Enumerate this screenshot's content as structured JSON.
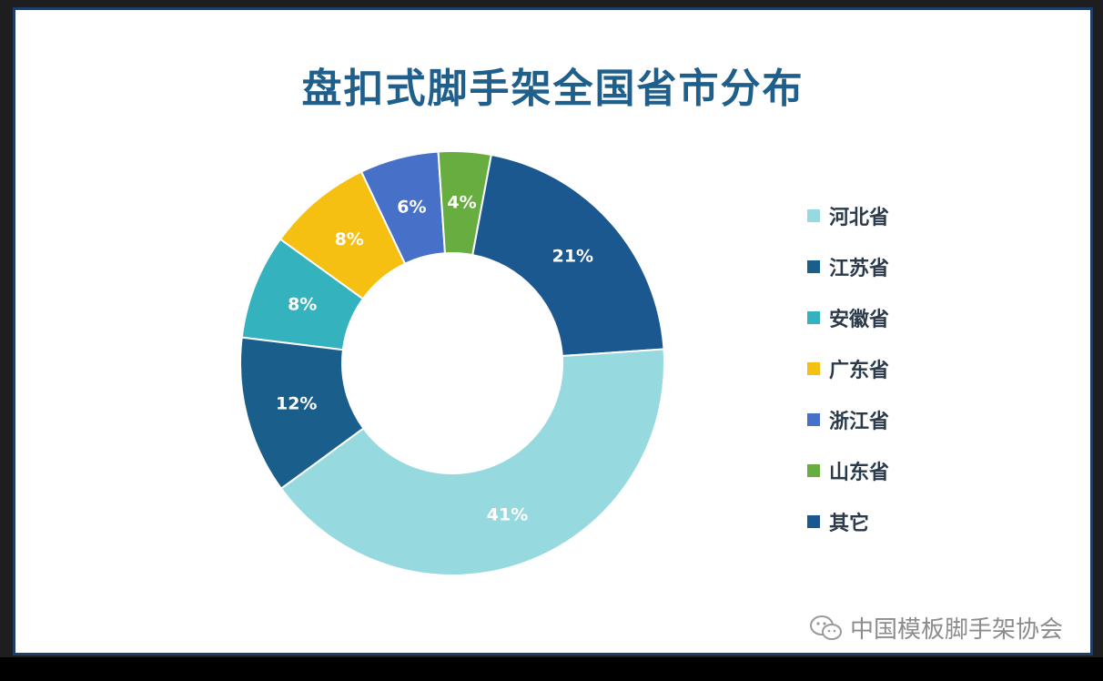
{
  "chart_data": {
    "type": "pie",
    "subtype": "donut",
    "title": "盘扣式脚手架全国省市分布",
    "legend_position": "right",
    "slices": [
      {
        "name": "河北省",
        "value": 41,
        "label": "41%",
        "color": "#96d9df"
      },
      {
        "name": "江苏省",
        "value": 12,
        "label": "12%",
        "color": "#1a5f8c"
      },
      {
        "name": "安徽省",
        "value": 8,
        "label": "8%",
        "color": "#34b2bd"
      },
      {
        "name": "广东省",
        "value": 8,
        "label": "8%",
        "color": "#f6c012"
      },
      {
        "name": "浙江省",
        "value": 6,
        "label": "6%",
        "color": "#4771c9"
      },
      {
        "name": "山东省",
        "value": 4,
        "label": "4%",
        "color": "#67ad3f"
      },
      {
        "name": "其它",
        "value": 21,
        "label": "21%",
        "color": "#1c5890"
      }
    ],
    "drawing_order": [
      "安徽省",
      "广东省",
      "浙江省",
      "山东省",
      "其它",
      "河北省",
      "江苏省"
    ]
  },
  "watermark": {
    "icon": "wechat-icon",
    "text": "中国模板脚手架协会"
  }
}
